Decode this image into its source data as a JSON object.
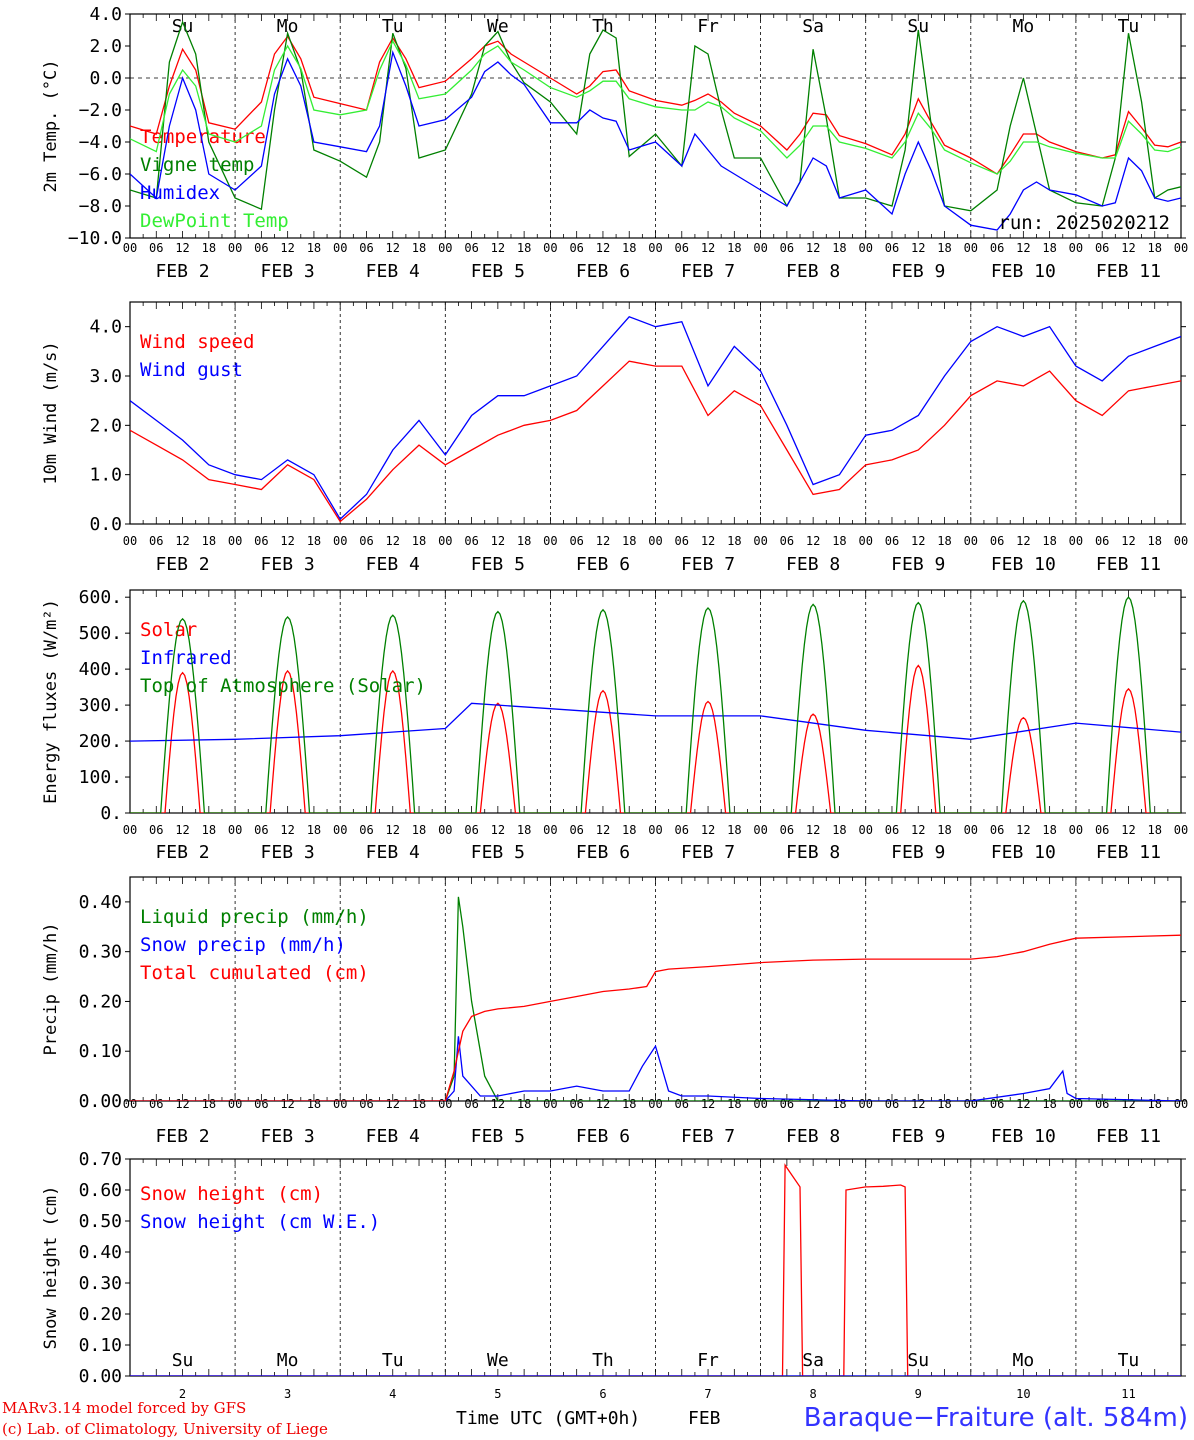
{
  "colors": {
    "red": "#ff0000",
    "green": "#008000",
    "blue": "#0000ff",
    "lime": "#33ee33",
    "black": "#000000"
  },
  "days": {
    "x_hour_labels": [
      "00",
      "06",
      "12",
      "18"
    ],
    "date_labels": [
      "FEB  2",
      "FEB  3",
      "FEB  4",
      "FEB  5",
      "FEB  6",
      "FEB  7",
      "FEB  8",
      "FEB  9",
      "FEB 10",
      "FEB 11"
    ],
    "weekday_labels": [
      "Su",
      "Mo",
      "Tu",
      "We",
      "Th",
      "Fr",
      "Sa",
      "Su",
      "Mo",
      "Tu"
    ],
    "weekday_colors": [
      "#ff0000",
      "#000000",
      "#000000",
      "#000000",
      "#000000",
      "#000000",
      "#ff0000",
      "#ff0000",
      "#000000",
      "#000000"
    ],
    "day_numbers": [
      "2",
      "3",
      "4",
      "5",
      "6",
      "7",
      "8",
      "9",
      "10",
      "11"
    ]
  },
  "run_label": "run: 2025020212",
  "footer": {
    "model": "MARv3.14 model forced by GFS",
    "lab": "(c) Lab. of Climatology, University of Liege",
    "time_axis": "Time UTC (GMT+0h)",
    "month": "FEB",
    "station": "Baraque−Fraiture (alt. 584m)"
  },
  "chart_data": [
    {
      "type": "line",
      "ylabel": "2m Temp. (°C)",
      "ylim": [
        -10,
        4
      ],
      "yticks": [
        "4.0",
        "2.0",
        "0.0",
        "−2.0",
        "−4.0",
        "−6.0",
        "−8.0",
        "−10.0"
      ],
      "x_hours": [
        0,
        6,
        9,
        12,
        15,
        18,
        24,
        30,
        33,
        36,
        39,
        42,
        48,
        54,
        57,
        60,
        63,
        66,
        72,
        78,
        81,
        84,
        87,
        90,
        96,
        102,
        105,
        108,
        111,
        114,
        120,
        126,
        129,
        132,
        135,
        138,
        144,
        150,
        153,
        156,
        159,
        162,
        168,
        174,
        177,
        180,
        183,
        186,
        192,
        198,
        201,
        204,
        207,
        210,
        216,
        222,
        225,
        228,
        231,
        234,
        237,
        240
      ],
      "series": [
        {
          "name": "Temperature",
          "color": "#ff0000",
          "values": [
            -3.0,
            -3.5,
            -0.5,
            1.8,
            0.5,
            -2.8,
            -3.2,
            -1.5,
            1.5,
            2.6,
            1.2,
            -1.2,
            -1.6,
            -2.0,
            1.0,
            2.5,
            1.2,
            -0.6,
            -0.2,
            1.2,
            2.0,
            2.3,
            1.5,
            1.0,
            0.0,
            -1.0,
            -0.5,
            0.4,
            0.5,
            -0.8,
            -1.4,
            -1.7,
            -1.4,
            -1.0,
            -1.5,
            -2.2,
            -3.0,
            -4.5,
            -3.5,
            -2.2,
            -2.3,
            -3.6,
            -4.1,
            -4.8,
            -3.5,
            -1.3,
            -2.8,
            -4.2,
            -5.0,
            -6.0,
            -4.8,
            -3.5,
            -3.5,
            -4.0,
            -4.6,
            -5.0,
            -4.8,
            -2.1,
            -3.1,
            -4.2,
            -4.3,
            -4.0
          ]
        },
        {
          "name": "Vigne temp",
          "color": "#008000",
          "values": [
            -7.0,
            -7.5,
            1.0,
            3.5,
            1.5,
            -4.0,
            -7.5,
            -8.2,
            -2.0,
            2.8,
            0.5,
            -4.5,
            -5.2,
            -6.2,
            -4.0,
            2.8,
            0.6,
            -5.0,
            -4.5,
            -1.0,
            2.0,
            2.9,
            1.0,
            -0.3,
            -1.5,
            -3.5,
            1.5,
            3.0,
            2.5,
            -4.9,
            -3.5,
            -5.5,
            2.0,
            1.5,
            -2.0,
            -5.0,
            -5.0,
            -8.0,
            -6.5,
            1.8,
            -2.5,
            -7.5,
            -7.5,
            -8.0,
            -4.5,
            3.0,
            -3.0,
            -8.0,
            -8.3,
            -7.0,
            -3.0,
            0.0,
            -3.5,
            -7.0,
            -7.8,
            -8.0,
            -5.0,
            2.8,
            -1.5,
            -7.5,
            -7.0,
            -6.8
          ]
        },
        {
          "name": "Humidex",
          "color": "#0000ff",
          "values": [
            -6.0,
            -7.5,
            -3.0,
            0.0,
            -2.0,
            -6.0,
            -7.0,
            -5.5,
            -1.0,
            1.2,
            -0.5,
            -4.0,
            -4.3,
            -4.6,
            -3.0,
            1.6,
            -0.5,
            -3.0,
            -2.6,
            -1.2,
            0.4,
            1.0,
            0.2,
            -0.4,
            -2.8,
            -2.8,
            -2.0,
            -2.5,
            -2.7,
            -4.5,
            -4.0,
            -5.5,
            -3.5,
            -4.5,
            -5.5,
            -6.0,
            -7.0,
            -8.0,
            -6.5,
            -5.0,
            -5.5,
            -7.5,
            -7.0,
            -8.5,
            -6.0,
            -4.0,
            -5.8,
            -8.0,
            -9.2,
            -9.5,
            -8.5,
            -7.0,
            -6.5,
            -7.0,
            -7.3,
            -8.0,
            -7.8,
            -5.0,
            -5.8,
            -7.5,
            -7.7,
            -7.5
          ]
        },
        {
          "name": "DewPoint Temp",
          "color": "#33ee33",
          "values": [
            -3.8,
            -4.6,
            -1.0,
            0.5,
            -0.5,
            -3.5,
            -4.0,
            -3.0,
            0.5,
            2.0,
            0.6,
            -2.0,
            -2.3,
            -2.0,
            0.5,
            2.3,
            0.8,
            -1.3,
            -1.0,
            0.5,
            1.5,
            2.0,
            1.0,
            0.5,
            -0.6,
            -1.2,
            -0.8,
            -0.2,
            -0.2,
            -1.3,
            -1.8,
            -2.0,
            -2.0,
            -1.5,
            -1.8,
            -2.5,
            -3.3,
            -5.0,
            -4.2,
            -3.0,
            -3.0,
            -4.0,
            -4.4,
            -5.0,
            -4.0,
            -2.2,
            -3.2,
            -4.5,
            -5.3,
            -6.0,
            -5.2,
            -4.0,
            -4.0,
            -4.3,
            -4.7,
            -5.0,
            -5.0,
            -2.7,
            -3.5,
            -4.5,
            -4.6,
            -4.3
          ]
        }
      ]
    },
    {
      "type": "line",
      "ylabel": "10m Wind (m/s)",
      "ylim": [
        0,
        4.5
      ],
      "yticks": [
        "4.0",
        "3.0",
        "2.0",
        "1.0",
        "0.0"
      ],
      "x_hours": [
        0,
        6,
        12,
        18,
        24,
        30,
        36,
        42,
        48,
        54,
        60,
        66,
        72,
        78,
        84,
        90,
        96,
        102,
        108,
        114,
        120,
        126,
        132,
        138,
        144,
        150,
        156,
        162,
        168,
        174,
        180,
        186,
        192,
        198,
        204,
        210,
        216,
        222,
        228,
        234,
        240
      ],
      "series": [
        {
          "name": "Wind speed",
          "color": "#ff0000",
          "values": [
            1.9,
            1.6,
            1.3,
            0.9,
            0.8,
            0.7,
            1.2,
            0.9,
            0.05,
            0.5,
            1.1,
            1.6,
            1.2,
            1.5,
            1.8,
            2.0,
            2.1,
            2.3,
            2.8,
            3.3,
            3.2,
            3.2,
            2.2,
            2.7,
            2.4,
            1.5,
            0.6,
            0.7,
            1.2,
            1.3,
            1.5,
            2.0,
            2.6,
            2.9,
            2.8,
            3.1,
            2.5,
            2.2,
            2.7,
            2.8,
            2.9
          ]
        },
        {
          "name": "Wind gust",
          "color": "#0000ff",
          "values": [
            2.5,
            2.1,
            1.7,
            1.2,
            1.0,
            0.9,
            1.3,
            1.0,
            0.1,
            0.6,
            1.5,
            2.1,
            1.4,
            2.2,
            2.6,
            2.6,
            2.8,
            3.0,
            3.6,
            4.2,
            4.0,
            4.1,
            2.8,
            3.6,
            3.1,
            2.0,
            0.8,
            1.0,
            1.8,
            1.9,
            2.2,
            3.0,
            3.7,
            4.0,
            3.8,
            4.0,
            3.2,
            2.9,
            3.4,
            3.6,
            3.8
          ]
        }
      ]
    },
    {
      "type": "line",
      "ylabel": "Energy fluxes (W/m²)",
      "ylim": [
        0,
        620
      ],
      "yticks": [
        "600.",
        "500.",
        "400.",
        "300.",
        "200.",
        "100.",
        "0."
      ],
      "series": [
        {
          "name": "Solar",
          "color": "#ff0000",
          "day_peaks": [
            390,
            395,
            395,
            305,
            340,
            310,
            275,
            410,
            265,
            345
          ]
        },
        {
          "name": "Infrared",
          "color": "#0000ff",
          "x_hours": [
            0,
            24,
            48,
            72,
            78,
            96,
            120,
            144,
            168,
            192,
            216,
            240
          ],
          "values": [
            200,
            205,
            215,
            235,
            305,
            290,
            270,
            270,
            230,
            205,
            250,
            225
          ]
        },
        {
          "name": "Top of Atmosphere (Solar)",
          "color": "#008000",
          "day_peaks": [
            540,
            545,
            550,
            560,
            565,
            570,
            580,
            585,
            590,
            600
          ]
        }
      ]
    },
    {
      "type": "line",
      "ylabel": "Precip (mm/h)",
      "ylim": [
        0,
        0.45
      ],
      "yticks": [
        "0.40",
        "0.30",
        "0.20",
        "0.10",
        "0.00"
      ],
      "series": [
        {
          "name": "Liquid precip (mm/h)",
          "color": "#008000",
          "x_hours": [
            0,
            72,
            74,
            75,
            76,
            78,
            81,
            84,
            96,
            240
          ],
          "values": [
            0,
            0,
            0.05,
            0.41,
            0.35,
            0.2,
            0.05,
            0,
            0,
            0
          ]
        },
        {
          "name": "Snow precip (mm/h)",
          "color": "#0000ff",
          "x_hours": [
            0,
            72,
            74,
            75,
            76,
            80,
            84,
            90,
            96,
            102,
            108,
            114,
            117,
            120,
            123,
            126,
            132,
            144,
            168,
            192,
            204,
            210,
            213,
            214,
            216,
            240
          ],
          "values": [
            0,
            0,
            0.02,
            0.13,
            0.05,
            0.01,
            0.01,
            0.02,
            0.02,
            0.03,
            0.02,
            0.02,
            0.07,
            0.11,
            0.02,
            0.01,
            0.01,
            0.005,
            0,
            0,
            0.015,
            0.025,
            0.06,
            0.015,
            0.005,
            0.0
          ]
        },
        {
          "name": "Total cumulated (cm)",
          "color": "#ff0000",
          "x_hours": [
            0,
            72,
            74,
            76,
            78,
            81,
            84,
            90,
            96,
            102,
            108,
            114,
            118,
            120,
            123,
            132,
            144,
            156,
            168,
            192,
            198,
            204,
            210,
            216,
            240
          ],
          "values": [
            0,
            0,
            0.06,
            0.14,
            0.17,
            0.18,
            0.185,
            0.19,
            0.2,
            0.21,
            0.22,
            0.225,
            0.23,
            0.26,
            0.265,
            0.27,
            0.278,
            0.283,
            0.285,
            0.285,
            0.29,
            0.3,
            0.315,
            0.327,
            0.333
          ]
        }
      ]
    },
    {
      "type": "line",
      "ylabel": "Snow height (cm)",
      "ylim": [
        0,
        0.7
      ],
      "yticks": [
        "0.70",
        "0.60",
        "0.50",
        "0.40",
        "0.30",
        "0.20",
        "0.10",
        "0.00"
      ],
      "series": [
        {
          "name": "Snow height (cm)",
          "color": "#ff0000",
          "x_hours": [
            0,
            149,
            149.6,
            153,
            153.6,
            158,
            158.6,
            163,
            163.5,
            168,
            168.4,
            172,
            176,
            177,
            177.6,
            240
          ],
          "values": [
            0,
            0,
            0.68,
            0.61,
            0,
            0,
            0,
            0,
            0.6,
            0.61,
            0.61,
            0.612,
            0.616,
            0.61,
            0,
            0
          ]
        },
        {
          "name": "Snow height (cm W.E.)",
          "color": "#0000ff",
          "x_hours": [
            0,
            240
          ],
          "values": [
            0,
            0
          ]
        }
      ]
    }
  ]
}
